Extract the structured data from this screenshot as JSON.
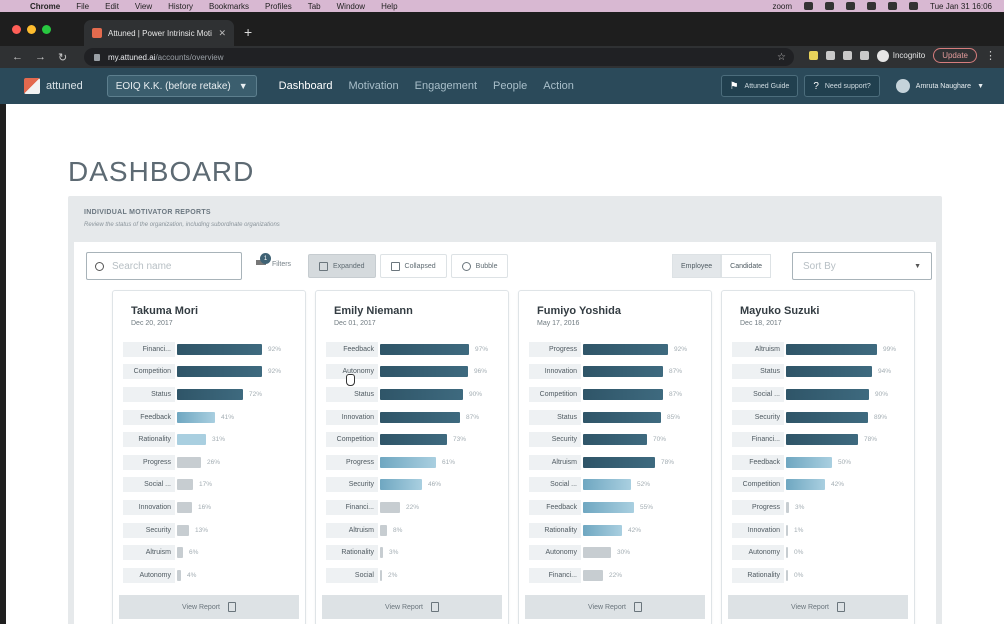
{
  "macos": {
    "app": "Chrome",
    "menu": [
      "File",
      "Edit",
      "View",
      "History",
      "Bookmarks",
      "Profiles",
      "Tab",
      "Window",
      "Help"
    ],
    "status_app": "zoom",
    "clock": "Tue Jan 31  16:06"
  },
  "browser": {
    "tab_title": "Attuned | Power Intrinsic Moti",
    "url_host": "my.attuned.ai",
    "url_path": "/accounts/overview",
    "profile_label": "Incognito",
    "update_label": "Update"
  },
  "appnav": {
    "logo_text": "attuned",
    "org_selector": "EOIQ K.K. (before retake)",
    "links": [
      "Dashboard",
      "Motivation",
      "Engagement",
      "People",
      "Action"
    ],
    "guide_label": "Attuned Guide",
    "support_label": "Need support?",
    "user_name": "Amruta Naughare"
  },
  "page": {
    "title": "DASHBOARD",
    "panel_title": "INDIVIDUAL MOTIVATOR REPORTS",
    "panel_subtitle": "Review the status of the organization, including subordinate organizations"
  },
  "controls": {
    "search_placeholder": "Search name",
    "filters_label": "Filters",
    "filters_count": "1",
    "view_buttons": [
      "Expanded",
      "Collapsed",
      "Bubble"
    ],
    "active_view": "Expanded",
    "toggle": [
      "Employee",
      "Candidate"
    ],
    "sort_placeholder": "Sort By"
  },
  "colors": {
    "nav_bg": "#2b4a5a",
    "bar_dark": "#2f5568",
    "bar_mid": "#6fa7c1",
    "bar_light": "#a9cfe0",
    "bar_gray": "#c7cdd1"
  },
  "cards": [
    {
      "name": "Takuma Mori",
      "date": "Dec 20, 2017",
      "rows": [
        {
          "label": "Financi...",
          "pct": "92%",
          "value": 92,
          "tone": "dark"
        },
        {
          "label": "Competition",
          "pct": "92%",
          "value": 92,
          "tone": "dark"
        },
        {
          "label": "Status",
          "pct": "72%",
          "value": 72,
          "tone": "dark"
        },
        {
          "label": "Feedback",
          "pct": "41%",
          "value": 41,
          "tone": "mid"
        },
        {
          "label": "Rationality",
          "pct": "31%",
          "value": 31,
          "tone": "light"
        },
        {
          "label": "Progress",
          "pct": "26%",
          "value": 26,
          "tone": "gray"
        },
        {
          "label": "Social ...",
          "pct": "17%",
          "value": 17,
          "tone": "gray"
        },
        {
          "label": "Innovation",
          "pct": "16%",
          "value": 16,
          "tone": "gray"
        },
        {
          "label": "Security",
          "pct": "13%",
          "value": 13,
          "tone": "gray"
        },
        {
          "label": "Altruism",
          "pct": "6%",
          "value": 6,
          "tone": "gray"
        },
        {
          "label": "Autonomy",
          "pct": "4%",
          "value": 4,
          "tone": "gray"
        }
      ],
      "view_report": "View Report"
    },
    {
      "name": "Emily Niemann",
      "date": "Dec 01, 2017",
      "rows": [
        {
          "label": "Feedback",
          "pct": "97%",
          "value": 97,
          "tone": "dark"
        },
        {
          "label": "Autonomy",
          "pct": "96%",
          "value": 96,
          "tone": "dark"
        },
        {
          "label": "Status",
          "pct": "90%",
          "value": 90,
          "tone": "dark"
        },
        {
          "label": "Innovation",
          "pct": "87%",
          "value": 87,
          "tone": "dark"
        },
        {
          "label": "Competition",
          "pct": "73%",
          "value": 73,
          "tone": "dark"
        },
        {
          "label": "Progress",
          "pct": "61%",
          "value": 61,
          "tone": "mid"
        },
        {
          "label": "Security",
          "pct": "46%",
          "value": 46,
          "tone": "mid"
        },
        {
          "label": "Financi...",
          "pct": "22%",
          "value": 22,
          "tone": "gray"
        },
        {
          "label": "Altruism",
          "pct": "8%",
          "value": 8,
          "tone": "gray"
        },
        {
          "label": "Rationality",
          "pct": "3%",
          "value": 3,
          "tone": "gray"
        },
        {
          "label": "Social",
          "pct": "2%",
          "value": 2,
          "tone": "gray"
        }
      ],
      "view_report": "View Report"
    },
    {
      "name": "Fumiyo Yoshida",
      "date": "May 17, 2016",
      "rows": [
        {
          "label": "Progress",
          "pct": "92%",
          "value": 92,
          "tone": "dark"
        },
        {
          "label": "Innovation",
          "pct": "87%",
          "value": 87,
          "tone": "dark"
        },
        {
          "label": "Competition",
          "pct": "87%",
          "value": 87,
          "tone": "dark"
        },
        {
          "label": "Status",
          "pct": "85%",
          "value": 85,
          "tone": "dark"
        },
        {
          "label": "Security",
          "pct": "70%",
          "value": 70,
          "tone": "dark"
        },
        {
          "label": "Altruism",
          "pct": "78%",
          "value": 78,
          "tone": "dark"
        },
        {
          "label": "Social ...",
          "pct": "52%",
          "value": 52,
          "tone": "mid"
        },
        {
          "label": "Feedback",
          "pct": "55%",
          "value": 55,
          "tone": "mid"
        },
        {
          "label": "Rationality",
          "pct": "42%",
          "value": 42,
          "tone": "mid"
        },
        {
          "label": "Autonomy",
          "pct": "30%",
          "value": 30,
          "tone": "gray"
        },
        {
          "label": "Financi...",
          "pct": "22%",
          "value": 22,
          "tone": "gray"
        }
      ],
      "view_report": "View Report"
    },
    {
      "name": "Mayuko Suzuki",
      "date": "Dec 18, 2017",
      "rows": [
        {
          "label": "Altruism",
          "pct": "99%",
          "value": 99,
          "tone": "dark"
        },
        {
          "label": "Status",
          "pct": "94%",
          "value": 94,
          "tone": "dark"
        },
        {
          "label": "Social ...",
          "pct": "90%",
          "value": 90,
          "tone": "dark"
        },
        {
          "label": "Security",
          "pct": "89%",
          "value": 89,
          "tone": "dark"
        },
        {
          "label": "Financi...",
          "pct": "78%",
          "value": 78,
          "tone": "dark"
        },
        {
          "label": "Feedback",
          "pct": "50%",
          "value": 50,
          "tone": "mid"
        },
        {
          "label": "Competition",
          "pct": "42%",
          "value": 42,
          "tone": "mid"
        },
        {
          "label": "Progress",
          "pct": "3%",
          "value": 3,
          "tone": "gray"
        },
        {
          "label": "Innovation",
          "pct": "1%",
          "value": 1,
          "tone": "gray"
        },
        {
          "label": "Autonomy",
          "pct": "0%",
          "value": 0,
          "tone": "gray"
        },
        {
          "label": "Rationality",
          "pct": "0%",
          "value": 0,
          "tone": "gray"
        }
      ],
      "view_report": "View Report"
    }
  ]
}
